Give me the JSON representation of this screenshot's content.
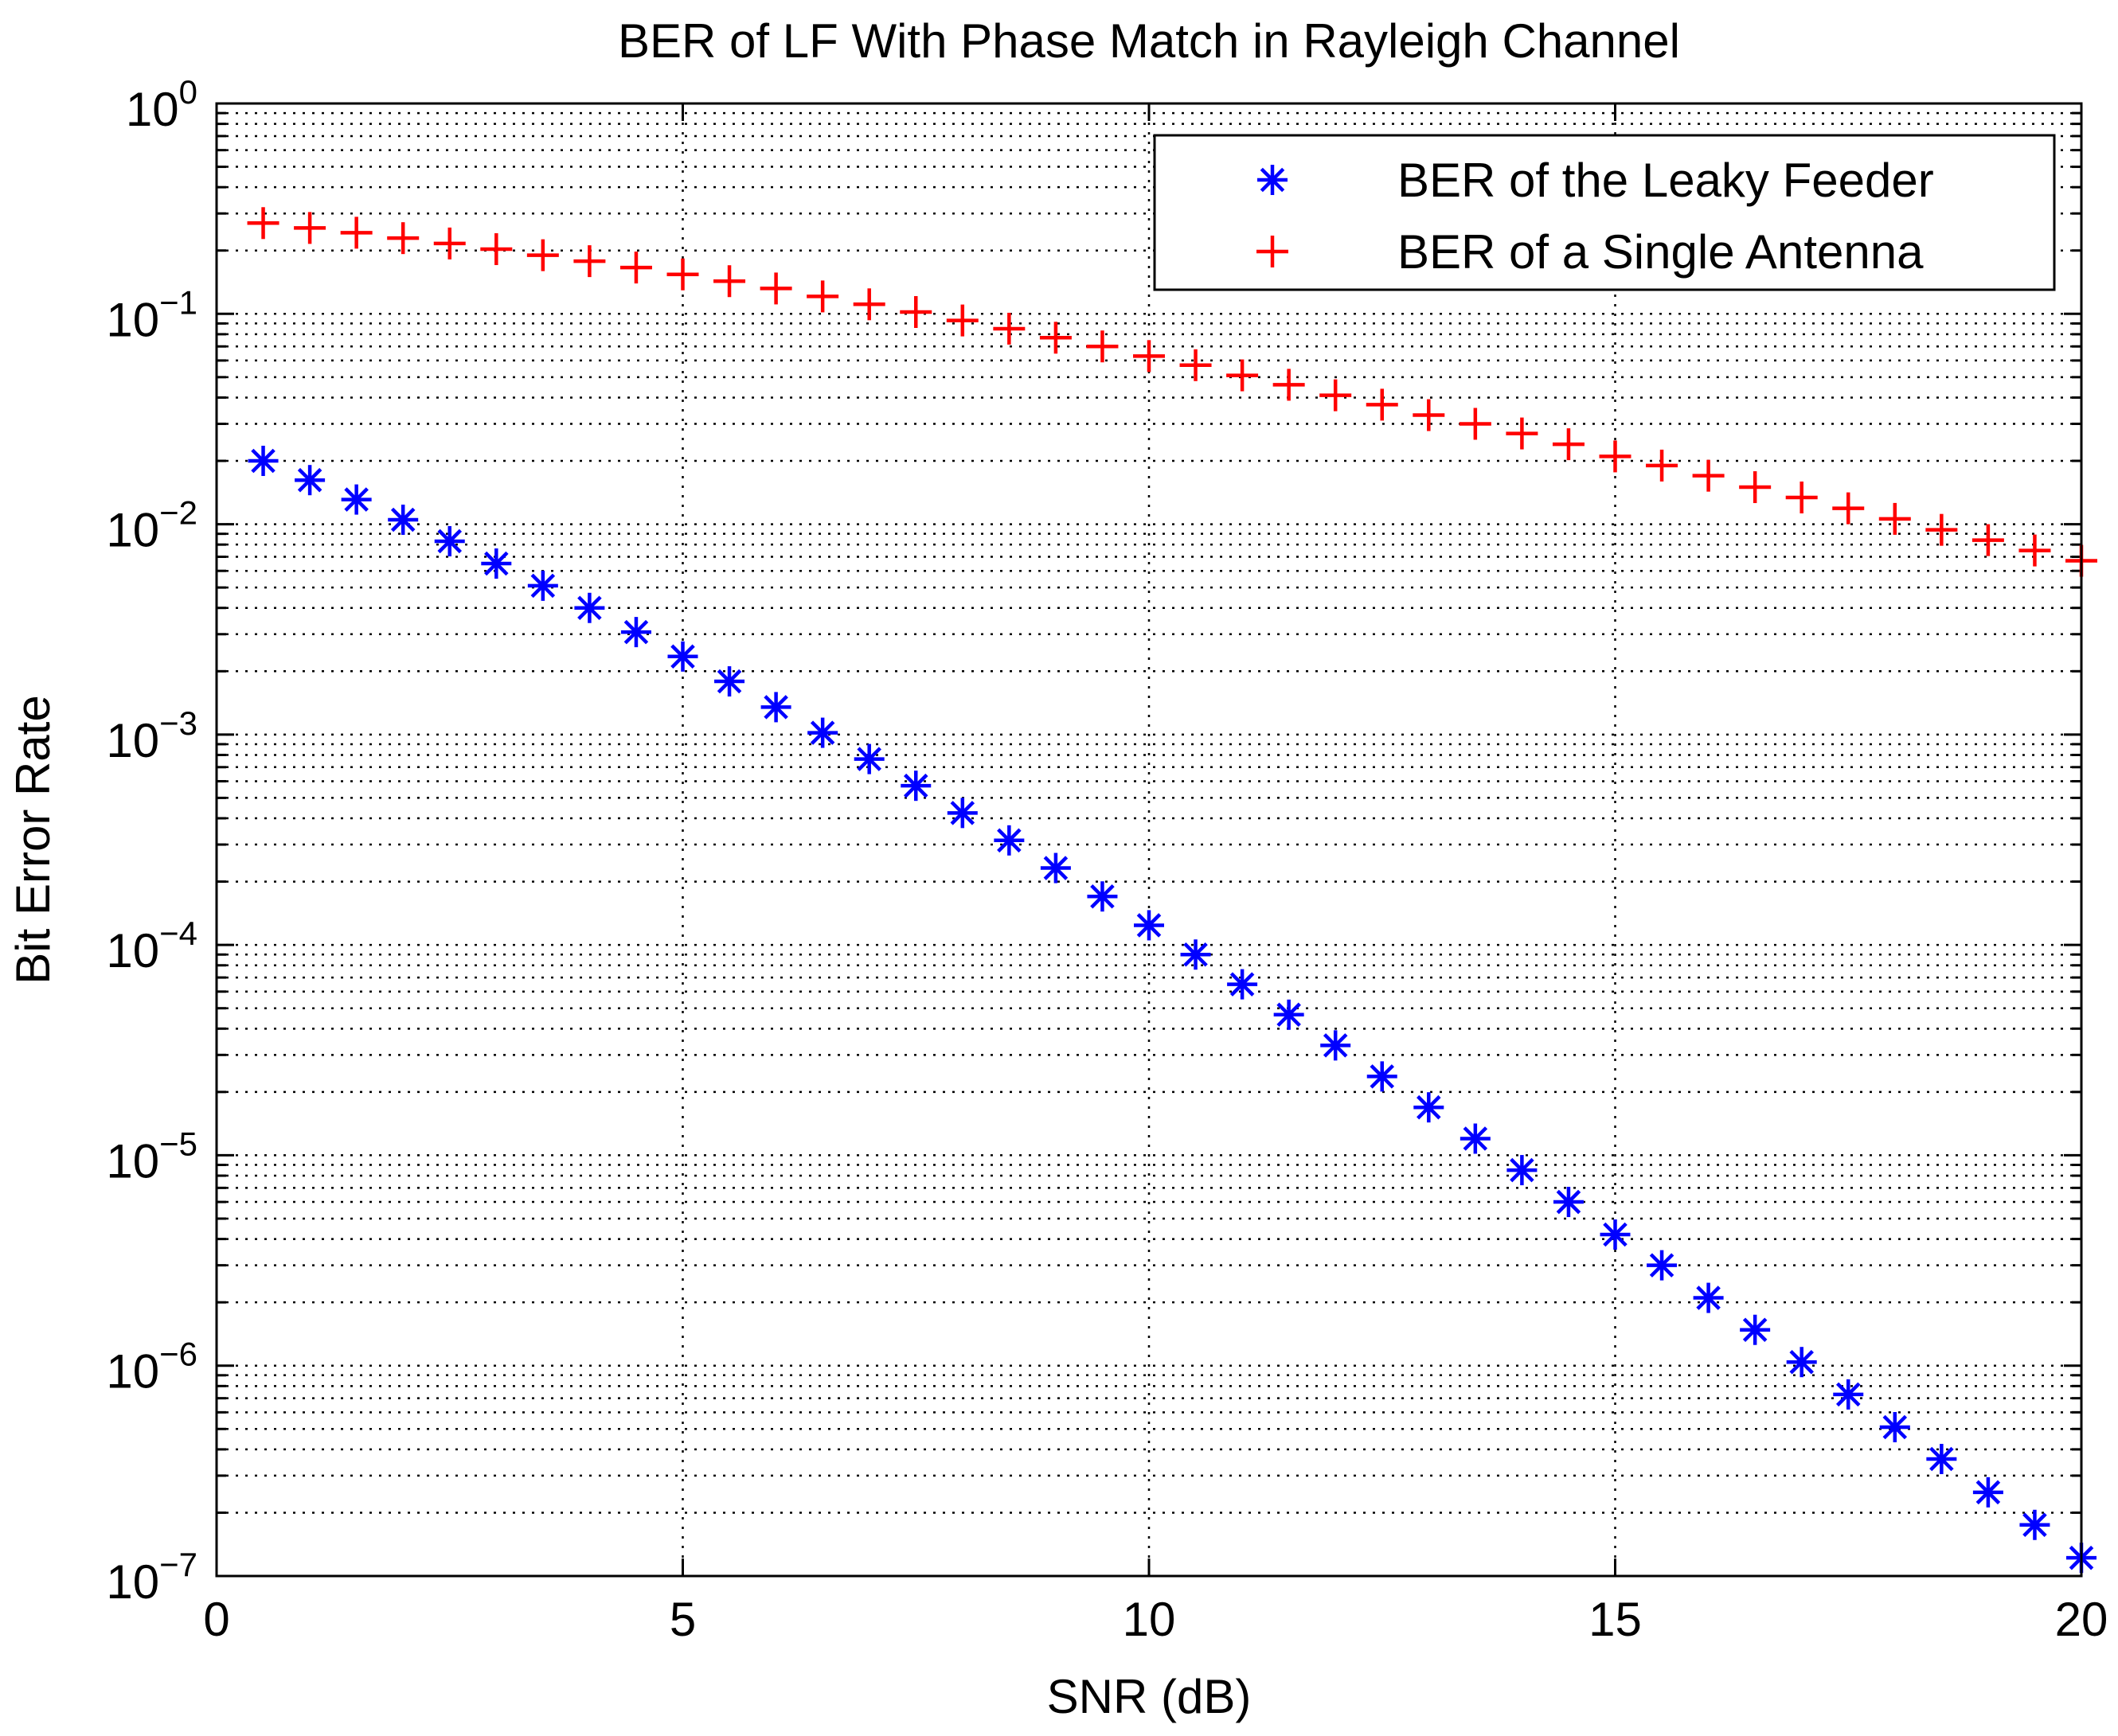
{
  "chart_data": {
    "type": "scatter",
    "title": "BER  of LF With Phase Match in Rayleigh Channel",
    "xlabel": "SNR (dB)",
    "ylabel": "Bit Error Rate",
    "xlim": [
      0,
      20
    ],
    "ylim": [
      1e-07,
      1
    ],
    "yscale": "log",
    "grid": true,
    "legend_position": "top-right",
    "x_ticks": [
      "0",
      "5",
      "10",
      "15",
      "20"
    ],
    "y_ticks": [
      {
        "base": "10",
        "exp": "0"
      },
      {
        "base": "10",
        "exp": "−1"
      },
      {
        "base": "10",
        "exp": "−2"
      },
      {
        "base": "10",
        "exp": "−3"
      },
      {
        "base": "10",
        "exp": "−4"
      },
      {
        "base": "10",
        "exp": "−5"
      },
      {
        "base": "10",
        "exp": "−6"
      },
      {
        "base": "10",
        "exp": "−7"
      }
    ],
    "x": [
      0.5,
      1,
      1.5,
      2,
      2.5,
      3,
      3.5,
      4,
      4.5,
      5,
      5.5,
      6,
      6.5,
      7,
      7.5,
      8,
      8.5,
      9,
      9.5,
      10,
      10.5,
      11,
      11.5,
      12,
      12.5,
      13,
      13.5,
      14,
      14.5,
      15,
      15.5,
      16,
      16.5,
      17,
      17.5,
      18,
      18.5,
      19,
      19.5,
      20
    ],
    "series": [
      {
        "name": "BER of the Leaky Feeder",
        "marker": "asterisk",
        "color": "#0000ff",
        "values": [
          0.02,
          0.0162,
          0.0131,
          0.0105,
          0.0083,
          0.0065,
          0.0051,
          0.004,
          0.00307,
          0.00235,
          0.00179,
          0.00135,
          0.00102,
          0.000765,
          0.000571,
          0.000424,
          0.000314,
          0.000232,
          0.00017,
          0.000124,
          9e-05,
          6.5e-05,
          4.66e-05,
          3.33e-05,
          2.37e-05,
          1.69e-05,
          1.2e-05,
          8.5e-06,
          6e-06,
          4.2e-06,
          3e-06,
          2.1e-06,
          1.48e-06,
          1.04e-06,
          7.3e-07,
          5.1e-07,
          3.6e-07,
          2.5e-07,
          1.75e-07,
          1.22e-07
        ]
      },
      {
        "name": "BER of a Single Antenna",
        "marker": "plus",
        "color": "#ff0000",
        "values": [
          0.27,
          0.256,
          0.243,
          0.229,
          0.216,
          0.203,
          0.19,
          0.178,
          0.166,
          0.154,
          0.143,
          0.132,
          0.121,
          0.111,
          0.102,
          0.093,
          0.085,
          0.077,
          0.07,
          0.063,
          0.057,
          0.051,
          0.046,
          0.041,
          0.037,
          0.033,
          0.03,
          0.027,
          0.024,
          0.021,
          0.019,
          0.017,
          0.015,
          0.0134,
          0.0119,
          0.0106,
          0.0094,
          0.0084,
          0.0075,
          0.0067
        ]
      }
    ]
  }
}
